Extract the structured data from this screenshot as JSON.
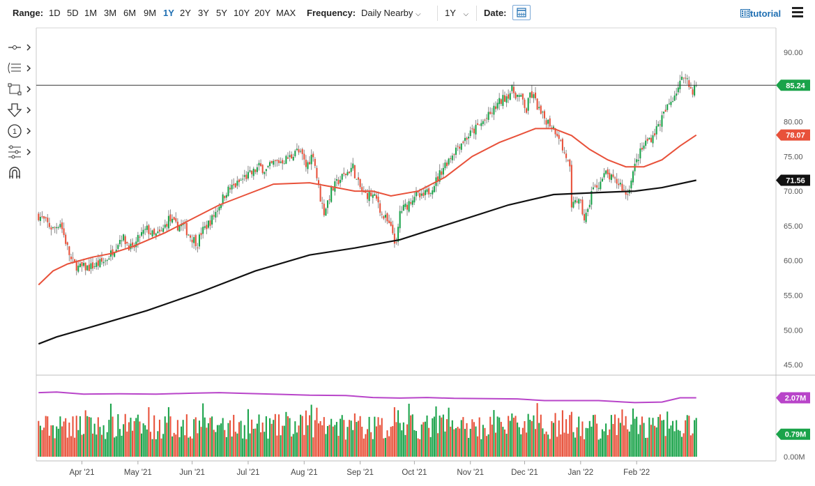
{
  "toolbar": {
    "range_label": "Range:",
    "ranges": [
      "1D",
      "5D",
      "1M",
      "3M",
      "6M",
      "9M",
      "1Y",
      "2Y",
      "3Y",
      "5Y",
      "10Y",
      "20Y",
      "MAX"
    ],
    "active_range": "1Y",
    "frequency_label": "Frequency:",
    "frequency_value": "Daily Nearby",
    "period_value": "1Y",
    "date_label": "Date:",
    "tutorial_label": "tutorial",
    "accent_color": "#1f6fb2"
  },
  "draw_tools": [
    "line-tool-icon",
    "fibonacci-tool-icon",
    "rectangle-tool-icon",
    "arrow-tool-icon",
    "count-tool-icon",
    "pattern-tool-icon",
    "magnet-icon"
  ],
  "chart_data": {
    "type": "candlestick",
    "x_labels": [
      "Apr '21",
      "May '21",
      "Jun '21",
      "Jul '21",
      "Aug '21",
      "Sep '21",
      "Oct '21",
      "Nov '21",
      "Dec '21",
      "Jan '22",
      "Feb '22"
    ],
    "price_axis": {
      "ticks": [
        "90.00",
        "85.00",
        "80.00",
        "75.00",
        "70.00",
        "65.00",
        "60.00",
        "55.00",
        "50.00",
        "45.00"
      ],
      "ylim": [
        43.5,
        93.5
      ]
    },
    "volume_axis": {
      "ticks": [
        "0.00M"
      ],
      "ylim": [
        0,
        2.62
      ]
    },
    "last_price": {
      "value": "85.24",
      "color": "#1aa34a"
    },
    "ma_short": {
      "label": "78.07",
      "color": "#e8513a"
    },
    "ma_long": {
      "label": "71.56",
      "color": "#111111"
    },
    "volume_ma": {
      "label": "2.07M",
      "color": "#b844c9"
    },
    "last_volume": {
      "label": "0.79M",
      "color": "#1aa34a"
    },
    "up_color": "#1aa34a",
    "down_color": "#e8513a",
    "close_path": [
      [
        0,
        66.5
      ],
      [
        8,
        64.5
      ],
      [
        12,
        65.5
      ],
      [
        18,
        60
      ],
      [
        22,
        59
      ],
      [
        28,
        59
      ],
      [
        33,
        59.5
      ],
      [
        37,
        60
      ],
      [
        40,
        61
      ],
      [
        46,
        63.5
      ],
      [
        52,
        61.5
      ],
      [
        56,
        63.5
      ],
      [
        60,
        64.5
      ],
      [
        64,
        63.5
      ],
      [
        68,
        64
      ],
      [
        72,
        66
      ],
      [
        76,
        65
      ],
      [
        80,
        65
      ],
      [
        84,
        63.5
      ],
      [
        88,
        62.5
      ],
      [
        90,
        64
      ],
      [
        96,
        66
      ],
      [
        100,
        68
      ],
      [
        104,
        70
      ],
      [
        110,
        71
      ],
      [
        114,
        72
      ],
      [
        118,
        72.5
      ],
      [
        122,
        73.5
      ],
      [
        126,
        73
      ],
      [
        130,
        74
      ],
      [
        136,
        74.5
      ],
      [
        140,
        75
      ],
      [
        142,
        76
      ],
      [
        146,
        75
      ],
      [
        148,
        73.5
      ],
      [
        152,
        75.5
      ],
      [
        154,
        72
      ],
      [
        156,
        69
      ],
      [
        158,
        67
      ],
      [
        162,
        70
      ],
      [
        166,
        71.5
      ],
      [
        170,
        72.5
      ],
      [
        174,
        73.5
      ],
      [
        176,
        71.5
      ],
      [
        180,
        69.5
      ],
      [
        184,
        69.5
      ],
      [
        188,
        68.5
      ],
      [
        190,
        66.5
      ],
      [
        192,
        66
      ],
      [
        196,
        64
      ],
      [
        198,
        62
      ],
      [
        200,
        67
      ],
      [
        204,
        68
      ],
      [
        208,
        69.5
      ],
      [
        212,
        69
      ],
      [
        216,
        70
      ],
      [
        220,
        71.5
      ],
      [
        224,
        73.5
      ],
      [
        228,
        75
      ],
      [
        232,
        76.5
      ],
      [
        236,
        77.5
      ],
      [
        240,
        78.5
      ],
      [
        244,
        79.5
      ],
      [
        246,
        80
      ],
      [
        250,
        81
      ],
      [
        254,
        82.5
      ],
      [
        258,
        83.5
      ],
      [
        262,
        84.5
      ],
      [
        264,
        84
      ],
      [
        268,
        83
      ],
      [
        270,
        81.5
      ],
      [
        272,
        84
      ],
      [
        274,
        83.5
      ],
      [
        278,
        81
      ],
      [
        282,
        80
      ],
      [
        284,
        79.5
      ],
      [
        288,
        78
      ],
      [
        290,
        76
      ],
      [
        292,
        75
      ],
      [
        294,
        73
      ],
      [
        295,
        67
      ],
      [
        297,
        69
      ],
      [
        300,
        68
      ],
      [
        302,
        66
      ],
      [
        304,
        67
      ],
      [
        306,
        70
      ],
      [
        310,
        71
      ],
      [
        314,
        72.5
      ],
      [
        318,
        71.5
      ],
      [
        322,
        71
      ],
      [
        324,
        70
      ],
      [
        326,
        69.5
      ],
      [
        328,
        72
      ],
      [
        332,
        75
      ],
      [
        336,
        77
      ],
      [
        340,
        78
      ],
      [
        344,
        80
      ],
      [
        348,
        82
      ],
      [
        352,
        84
      ],
      [
        356,
        86
      ],
      [
        358,
        87
      ],
      [
        360,
        85
      ],
      [
        362,
        84.5
      ],
      [
        364,
        85.24
      ]
    ],
    "sma_short": [
      [
        0,
        56.5
      ],
      [
        8,
        58.5
      ],
      [
        16,
        59.5
      ],
      [
        30,
        60.5
      ],
      [
        40,
        61
      ],
      [
        52,
        62
      ],
      [
        70,
        64
      ],
      [
        85,
        66
      ],
      [
        100,
        68
      ],
      [
        115,
        69.5
      ],
      [
        130,
        71
      ],
      [
        150,
        71.2
      ],
      [
        165,
        70.5
      ],
      [
        175,
        70
      ],
      [
        185,
        70
      ],
      [
        195,
        69.3
      ],
      [
        210,
        70
      ],
      [
        225,
        72
      ],
      [
        240,
        75
      ],
      [
        255,
        77
      ],
      [
        265,
        78
      ],
      [
        275,
        79
      ],
      [
        285,
        79
      ],
      [
        295,
        78
      ],
      [
        305,
        76
      ],
      [
        315,
        74.5
      ],
      [
        325,
        73.5
      ],
      [
        335,
        73.5
      ],
      [
        345,
        74.5
      ],
      [
        355,
        76.5
      ],
      [
        364,
        78.07
      ]
    ],
    "sma_long": [
      [
        0,
        48
      ],
      [
        10,
        49
      ],
      [
        30,
        50.5
      ],
      [
        60,
        52.8
      ],
      [
        90,
        55.5
      ],
      [
        120,
        58.5
      ],
      [
        150,
        60.8
      ],
      [
        175,
        61.8
      ],
      [
        200,
        63
      ],
      [
        230,
        65.5
      ],
      [
        260,
        68
      ],
      [
        285,
        69.5
      ],
      [
        310,
        69.8
      ],
      [
        330,
        70
      ],
      [
        345,
        70.5
      ],
      [
        364,
        71.56
      ]
    ],
    "volume_ma_path": [
      [
        0,
        2.25
      ],
      [
        10,
        2.27
      ],
      [
        25,
        2.2
      ],
      [
        45,
        2.21
      ],
      [
        65,
        2.2
      ],
      [
        85,
        2.23
      ],
      [
        100,
        2.25
      ],
      [
        115,
        2.22
      ],
      [
        135,
        2.19
      ],
      [
        150,
        2.16
      ],
      [
        170,
        2.15
      ],
      [
        185,
        2.08
      ],
      [
        200,
        2.06
      ],
      [
        215,
        2.08
      ],
      [
        230,
        2.05
      ],
      [
        250,
        2.04
      ],
      [
        265,
        2.03
      ],
      [
        280,
        1.97
      ],
      [
        295,
        1.97
      ],
      [
        310,
        1.97
      ],
      [
        330,
        1.9
      ],
      [
        345,
        1.92
      ],
      [
        355,
        2.07
      ],
      [
        364,
        2.07
      ]
    ]
  }
}
